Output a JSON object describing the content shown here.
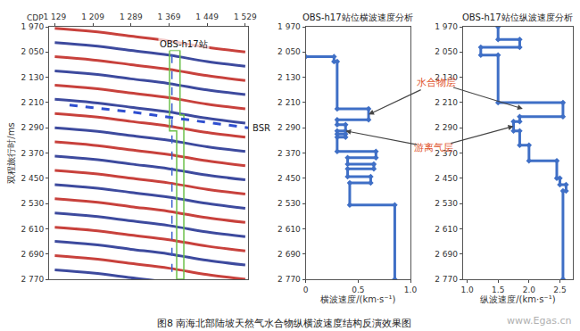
{
  "chart_data": [
    {
      "type": "seismic_section",
      "corner_label": "CDP",
      "ylabel": "双程旅行时/ms",
      "xlim": [
        1117,
        1535
      ],
      "xticks": [
        {
          "value": 1129,
          "label": "1 129"
        },
        {
          "value": 1209,
          "label": "1 209"
        },
        {
          "value": 1289,
          "label": "1 289"
        },
        {
          "value": 1369,
          "label": "1 369"
        },
        {
          "value": 1449,
          "label": "1 449"
        },
        {
          "value": 1529,
          "label": "1 529"
        }
      ],
      "ylim": [
        1970,
        2770
      ],
      "yticks": [
        {
          "value": 1970,
          "label": "1 970"
        },
        {
          "value": 2050,
          "label": "2 050"
        },
        {
          "value": 2130,
          "label": "2 130"
        },
        {
          "value": 2210,
          "label": "2 210"
        },
        {
          "value": 2290,
          "label": "2 290"
        },
        {
          "value": 2370,
          "label": "2 370"
        },
        {
          "value": 2450,
          "label": "2 450"
        },
        {
          "value": 2530,
          "label": "2 530"
        },
        {
          "value": 2610,
          "label": "2 610"
        },
        {
          "value": 2690,
          "label": "2 690"
        },
        {
          "value": 2770,
          "label": "2 770"
        }
      ],
      "reflectors": {
        "x": [
          1129,
          1209,
          1289,
          1369,
          1449,
          1529
        ],
        "colors": [
          "#c8413c",
          "#3d4a9e",
          "#c8413c",
          "#3d4a9e",
          "#c8413c",
          "#3d4a9e",
          "#c8413c",
          "#3d4a9e",
          "#c8413c",
          "#3d4a9e",
          "#c8413c",
          "#3d4a9e",
          "#c8413c",
          "#3d4a9e",
          "#c8413c",
          "#3d4a9e",
          "#c8413c",
          "#3d4a9e"
        ],
        "y": [
          [
            1975,
            1985,
            2000,
            2015,
            2035,
            2050
          ],
          [
            2020,
            2030,
            2045,
            2060,
            2080,
            2095
          ],
          [
            2065,
            2075,
            2090,
            2105,
            2125,
            2140
          ],
          [
            2110,
            2120,
            2135,
            2150,
            2170,
            2185
          ],
          [
            2155,
            2165,
            2180,
            2195,
            2215,
            2230
          ],
          [
            2200,
            2210,
            2225,
            2240,
            2260,
            2275
          ],
          [
            2245,
            2255,
            2270,
            2285,
            2305,
            2320
          ],
          [
            2290,
            2300,
            2315,
            2330,
            2350,
            2365
          ],
          [
            2335,
            2345,
            2360,
            2375,
            2395,
            2410
          ],
          [
            2380,
            2390,
            2405,
            2420,
            2440,
            2455
          ],
          [
            2425,
            2435,
            2450,
            2465,
            2485,
            2500
          ],
          [
            2470,
            2480,
            2495,
            2510,
            2530,
            2545
          ],
          [
            2515,
            2525,
            2540,
            2555,
            2575,
            2590
          ],
          [
            2560,
            2570,
            2585,
            2600,
            2620,
            2635
          ],
          [
            2605,
            2615,
            2630,
            2645,
            2665,
            2680
          ],
          [
            2650,
            2660,
            2675,
            2690,
            2710,
            2725
          ],
          [
            2695,
            2705,
            2720,
            2735,
            2755,
            2770
          ],
          [
            2740,
            2750,
            2765,
            2780,
            2800,
            2815
          ]
        ]
      },
      "obs_station": {
        "label": "OBS-h17站",
        "x": [
          1375,
          1375
        ],
        "y": [
          2060,
          2770
        ],
        "color": "#3a5fcd",
        "line_style": "dash"
      },
      "window": {
        "x": [
          1370,
          1392,
          1392,
          1400,
          1400,
          1385,
          1385,
          1370,
          1370
        ],
        "y": [
          2045,
          2045,
          2250,
          2250,
          2770,
          2770,
          2300,
          2300,
          2045
        ],
        "color": "#6cc04a"
      },
      "bsr": {
        "label": "BSR",
        "x": [
          1160,
          1290,
          1410,
          1535
        ],
        "y": [
          2218,
          2240,
          2265,
          2290
        ],
        "color": "#2f4fd0",
        "line_style": "dash"
      }
    },
    {
      "type": "line",
      "title": "OBS-h17站位横波速度分析",
      "xlabel": "横波速度/(km·s⁻¹)",
      "xlim": [
        0,
        1
      ],
      "xticks": [
        0,
        0.5,
        {
          "value": 1,
          "label": "1.0"
        }
      ],
      "ylim": [
        1970,
        2770
      ],
      "yticks": [
        {
          "value": 1970,
          "label": "1 970"
        },
        {
          "value": 2050,
          "label": "2 050"
        },
        {
          "value": 2130,
          "label": "2 130"
        },
        {
          "value": 2210,
          "label": "2 210"
        },
        {
          "value": 2290,
          "label": "2 290"
        },
        {
          "value": 2370,
          "label": "2 370"
        },
        {
          "value": 2450,
          "label": "2 450"
        },
        {
          "value": 2530,
          "label": "2 530"
        },
        {
          "value": 2610,
          "label": "2 610"
        },
        {
          "value": 2690,
          "label": "2 690"
        },
        {
          "value": 2770,
          "label": "2 770"
        }
      ],
      "color": "#3f6fc6",
      "marker": "diamond",
      "x": [
        0,
        0.27,
        0.27,
        0.3,
        0.3,
        0.6,
        0.6,
        0.3,
        0.3,
        0.38,
        0.38,
        0.3,
        0.3,
        0.38,
        0.38,
        0.3,
        0.3,
        0.67,
        0.67,
        0.4,
        0.4,
        0.65,
        0.65,
        0.4,
        0.4,
        0.62,
        0.62,
        0.42,
        0.42,
        0.85,
        0.85
      ],
      "y": [
        2065,
        2065,
        2080,
        2080,
        2230,
        2230,
        2265,
        2265,
        2280,
        2280,
        2300,
        2300,
        2310,
        2310,
        2320,
        2320,
        2365,
        2365,
        2385,
        2385,
        2405,
        2405,
        2420,
        2420,
        2445,
        2445,
        2465,
        2465,
        2535,
        2535,
        2770
      ]
    },
    {
      "type": "line",
      "title": "OBS-h17站位纵波速度分析",
      "xlabel": "纵波速度/(km·s⁻¹)",
      "xlim": [
        0.93,
        2.71
      ],
      "xticks": [
        {
          "value": 1,
          "label": "1.0"
        },
        1.5,
        {
          "value": 2,
          "label": "2.0"
        },
        2.5
      ],
      "ylim": [
        1970,
        2770
      ],
      "yticks": [
        {
          "value": 1970,
          "label": "1 970"
        },
        {
          "value": 2050,
          "label": "2 050"
        },
        {
          "value": 2130,
          "label": "2 130"
        },
        {
          "value": 2210,
          "label": "2 210"
        },
        {
          "value": 2290,
          "label": "2 290"
        },
        {
          "value": 2370,
          "label": "2 370"
        },
        {
          "value": 2450,
          "label": "2 450"
        },
        {
          "value": 2530,
          "label": "2 530"
        },
        {
          "value": 2610,
          "label": "2 610"
        },
        {
          "value": 2690,
          "label": "2 690"
        },
        {
          "value": 2770,
          "label": "2 770"
        }
      ],
      "color": "#3f6fc6",
      "marker": "diamond",
      "x": [
        1.5,
        1.5,
        1.85,
        1.85,
        1.22,
        1.22,
        1.5,
        1.5,
        2.55,
        2.55,
        1.85,
        1.85,
        1.75,
        1.75,
        1.85,
        1.85,
        2.0,
        2.0,
        2.45,
        2.45,
        2.5,
        2.5,
        2.6,
        2.6,
        2.55,
        2.55
      ],
      "y": [
        1970,
        2010,
        2010,
        2035,
        2035,
        2060,
        2060,
        2210,
        2210,
        2255,
        2255,
        2270,
        2270,
        2300,
        2300,
        2345,
        2345,
        2395,
        2395,
        2450,
        2450,
        2470,
        2470,
        2490,
        2490,
        2770
      ]
    }
  ],
  "annotations": [
    {
      "text": "水合物层",
      "color": "#e0522a",
      "targets": [
        {
          "chart": 1,
          "x": 0.6,
          "y": 2248
        },
        {
          "chart": 2,
          "x": 1.9,
          "y": 2230
        }
      ]
    },
    {
      "text": "游离气层",
      "color": "#e0522a",
      "targets": [
        {
          "chart": 1,
          "x": 0.38,
          "y": 2300
        },
        {
          "chart": 2,
          "x": 1.75,
          "y": 2285
        }
      ]
    }
  ],
  "caption": "图8 南海北部陆坡天然气水合物纵横波速度结构反演效果图",
  "watermark": "www.Egas.cn"
}
